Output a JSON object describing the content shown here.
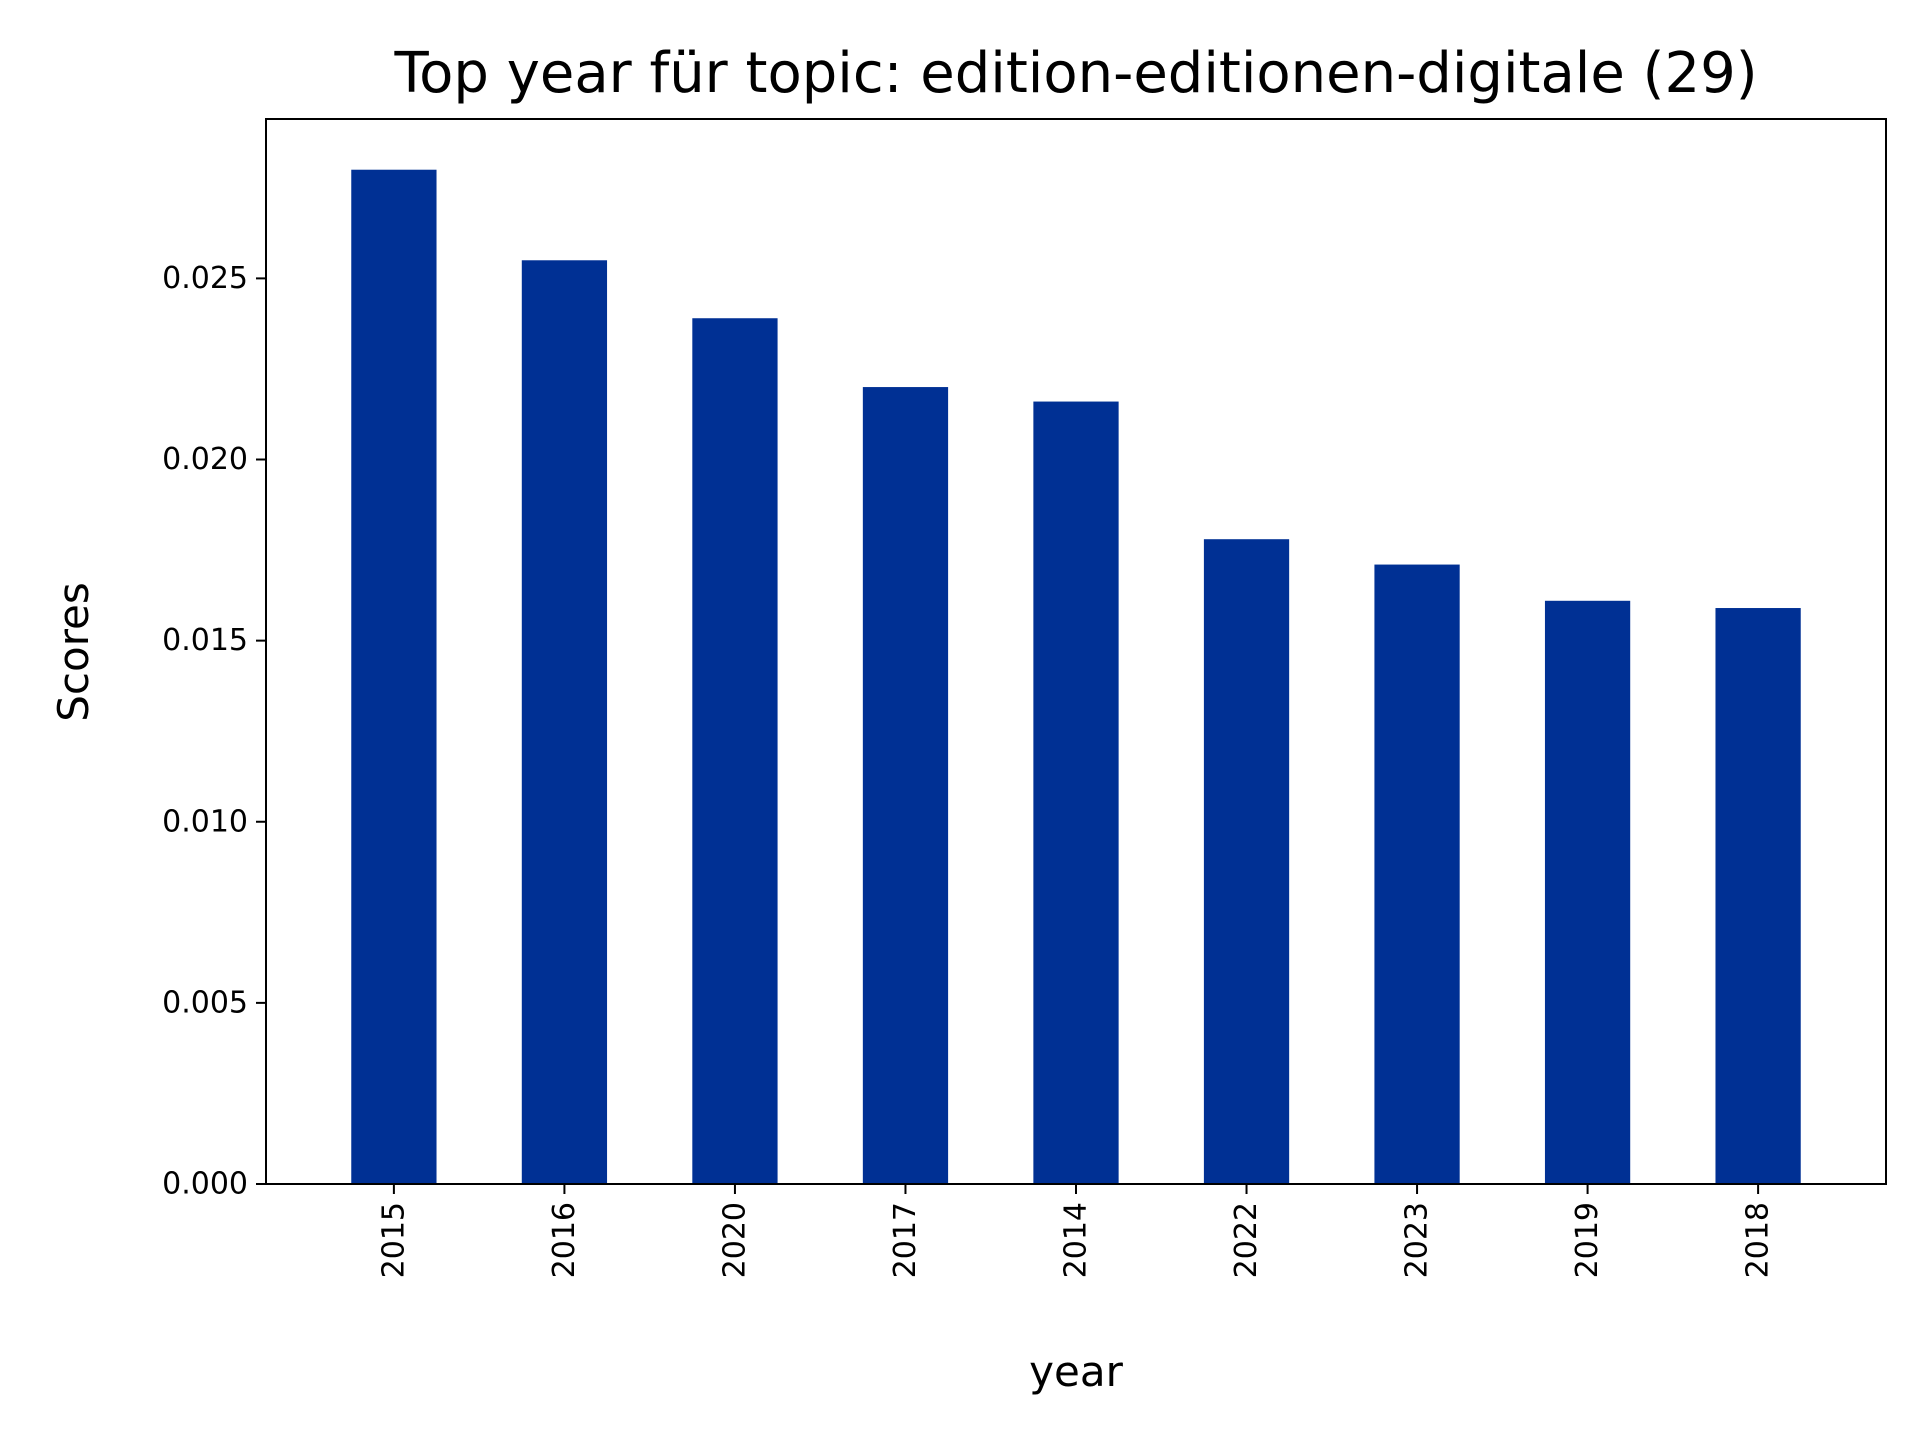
{
  "chart_data": {
    "type": "bar",
    "title": "Top year für topic: edition-editionen-digitale (29)",
    "xlabel": "year",
    "ylabel": "Scores",
    "categories": [
      "2015",
      "2016",
      "2020",
      "2017",
      "2014",
      "2022",
      "2023",
      "2019",
      "2018"
    ],
    "values": [
      0.028,
      0.0255,
      0.0239,
      0.022,
      0.0216,
      0.0178,
      0.0171,
      0.0161,
      0.0159
    ],
    "ylim": [
      0,
      0.0294
    ],
    "yticks": [
      "0.000",
      "0.005",
      "0.010",
      "0.015",
      "0.020",
      "0.025"
    ],
    "bar_color": "#003094",
    "grid": false,
    "legend": "none"
  }
}
